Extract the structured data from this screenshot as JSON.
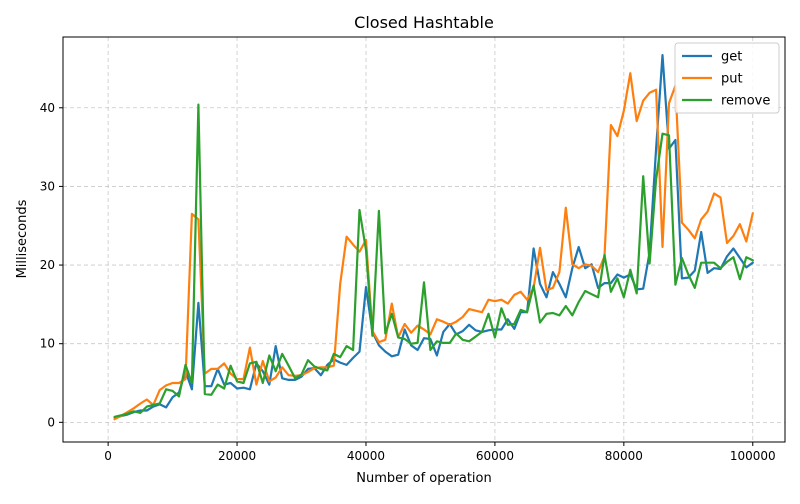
{
  "chart_data": {
    "type": "line",
    "title": "Closed Hashtable",
    "xlabel": "Number of operation",
    "ylabel": "Milliseconds",
    "xlim": [
      -7000,
      105000
    ],
    "ylim": [
      -2.5,
      49
    ],
    "xticks": [
      0,
      20000,
      40000,
      60000,
      80000,
      100000
    ],
    "yticks": [
      0,
      10,
      20,
      30,
      40
    ],
    "grid": true,
    "legend_position": "upper right",
    "x": [
      1000,
      2000,
      3000,
      4000,
      5000,
      6000,
      7000,
      8000,
      9000,
      10000,
      11000,
      12000,
      13000,
      14000,
      15000,
      16000,
      17000,
      18000,
      19000,
      20000,
      21000,
      22000,
      23000,
      24000,
      25000,
      26000,
      27000,
      28000,
      29000,
      30000,
      31000,
      32000,
      33000,
      34000,
      35000,
      36000,
      37000,
      38000,
      39000,
      40000,
      41000,
      42000,
      43000,
      44000,
      45000,
      46000,
      47000,
      48000,
      49000,
      50000,
      51000,
      52000,
      53000,
      54000,
      55000,
      56000,
      57000,
      58000,
      59000,
      60000,
      61000,
      62000,
      63000,
      64000,
      65000,
      66000,
      67000,
      68000,
      69000,
      70000,
      71000,
      72000,
      73000,
      74000,
      75000,
      76000,
      77000,
      78000,
      79000,
      80000,
      81000,
      82000,
      83000,
      84000,
      85000,
      86000,
      87000,
      88000,
      89000,
      90000,
      91000,
      92000,
      93000,
      94000,
      95000,
      96000,
      97000,
      98000,
      99000,
      100000
    ],
    "series": [
      {
        "name": "get",
        "color": "#1f77b4",
        "values": [
          0.6,
          0.8,
          1.0,
          1.3,
          1.5,
          1.5,
          2.0,
          2.3,
          1.9,
          3.2,
          3.8,
          6.5,
          4.2,
          15.2,
          4.6,
          4.6,
          6.8,
          4.8,
          5.0,
          4.3,
          4.4,
          4.2,
          7.5,
          6.5,
          4.8,
          9.7,
          5.6,
          5.4,
          5.4,
          5.8,
          6.8,
          6.9,
          6.0,
          7.3,
          8.0,
          7.6,
          7.3,
          8.2,
          9.0,
          17.2,
          11.5,
          9.8,
          9.0,
          8.4,
          8.6,
          11.8,
          9.8,
          9.2,
          10.7,
          10.6,
          8.5,
          11.5,
          12.5,
          11.2,
          11.6,
          12.4,
          11.7,
          11.5,
          11.7,
          11.8,
          11.8,
          13.1,
          11.9,
          14.0,
          14.0,
          22.1,
          17.6,
          15.9,
          19.1,
          17.6,
          15.9,
          19.6,
          22.3,
          19.6,
          20.1,
          17.1,
          17.7,
          17.7,
          18.8,
          18.4,
          18.8,
          16.9,
          17.0,
          21.6,
          34.8,
          46.7,
          34.8,
          35.9,
          18.3,
          18.4,
          19.3,
          24.2,
          19.0,
          19.6,
          19.5,
          21.1,
          22.1,
          20.9,
          19.7,
          20.3
        ]
      },
      {
        "name": "put",
        "color": "#ff7f0e",
        "values": [
          0.4,
          0.8,
          1.3,
          1.8,
          2.4,
          2.9,
          2.2,
          4.1,
          4.7,
          5.0,
          5.0,
          5.5,
          26.5,
          25.8,
          6.2,
          6.8,
          6.8,
          7.5,
          6.2,
          5.5,
          5.5,
          9.5,
          4.8,
          7.8,
          5.2,
          5.7,
          7.0,
          6.0,
          5.9,
          6.0,
          6.4,
          6.9,
          7.0,
          7.0,
          7.2,
          17.6,
          23.6,
          22.6,
          21.7,
          23.2,
          11.6,
          10.2,
          10.5,
          15.1,
          10.8,
          12.5,
          11.4,
          12.3,
          11.8,
          11.2,
          13.1,
          12.8,
          12.4,
          12.8,
          13.4,
          14.4,
          14.2,
          14.0,
          15.6,
          15.4,
          15.6,
          15.1,
          16.2,
          16.6,
          15.6,
          17.1,
          22.2,
          16.8,
          17.1,
          19.1,
          27.3,
          20.1,
          19.6,
          20.1,
          19.9,
          19.1,
          21.1,
          37.8,
          36.4,
          39.6,
          44.4,
          38.3,
          40.9,
          41.9,
          42.3,
          22.3,
          40.6,
          42.8,
          25.4,
          24.5,
          23.4,
          25.8,
          26.8,
          29.1,
          28.6,
          22.8,
          23.7,
          25.2,
          23.0,
          26.6
        ]
      },
      {
        "name": "remove",
        "color": "#2ca02c",
        "values": [
          0.7,
          0.9,
          1.1,
          1.4,
          1.2,
          2.0,
          2.2,
          2.4,
          4.2,
          4.0,
          3.3,
          7.3,
          5.0,
          40.4,
          3.6,
          3.5,
          4.8,
          4.3,
          7.2,
          5.2,
          5.0,
          7.5,
          7.7,
          5.0,
          8.5,
          6.5,
          8.7,
          7.2,
          5.6,
          6.1,
          7.9,
          7.1,
          6.8,
          6.6,
          8.7,
          8.3,
          9.7,
          9.2,
          27.0,
          21.9,
          11.0,
          26.9,
          11.3,
          13.8,
          10.8,
          10.6,
          10.0,
          10.1,
          17.8,
          9.2,
          10.3,
          10.1,
          10.1,
          11.3,
          10.5,
          10.3,
          10.9,
          11.5,
          13.8,
          10.8,
          14.5,
          12.4,
          12.5,
          14.3,
          14.0,
          17.4,
          12.7,
          13.8,
          13.9,
          13.6,
          14.8,
          13.6,
          15.3,
          16.7,
          16.3,
          15.9,
          21.3,
          16.6,
          18.3,
          15.9,
          19.4,
          16.4,
          31.3,
          20.2,
          30.9,
          36.7,
          36.5,
          17.5,
          20.9,
          18.8,
          17.1,
          20.3,
          20.3,
          20.3,
          19.6,
          20.4,
          21.0,
          18.2,
          21.0,
          20.6
        ]
      }
    ]
  }
}
